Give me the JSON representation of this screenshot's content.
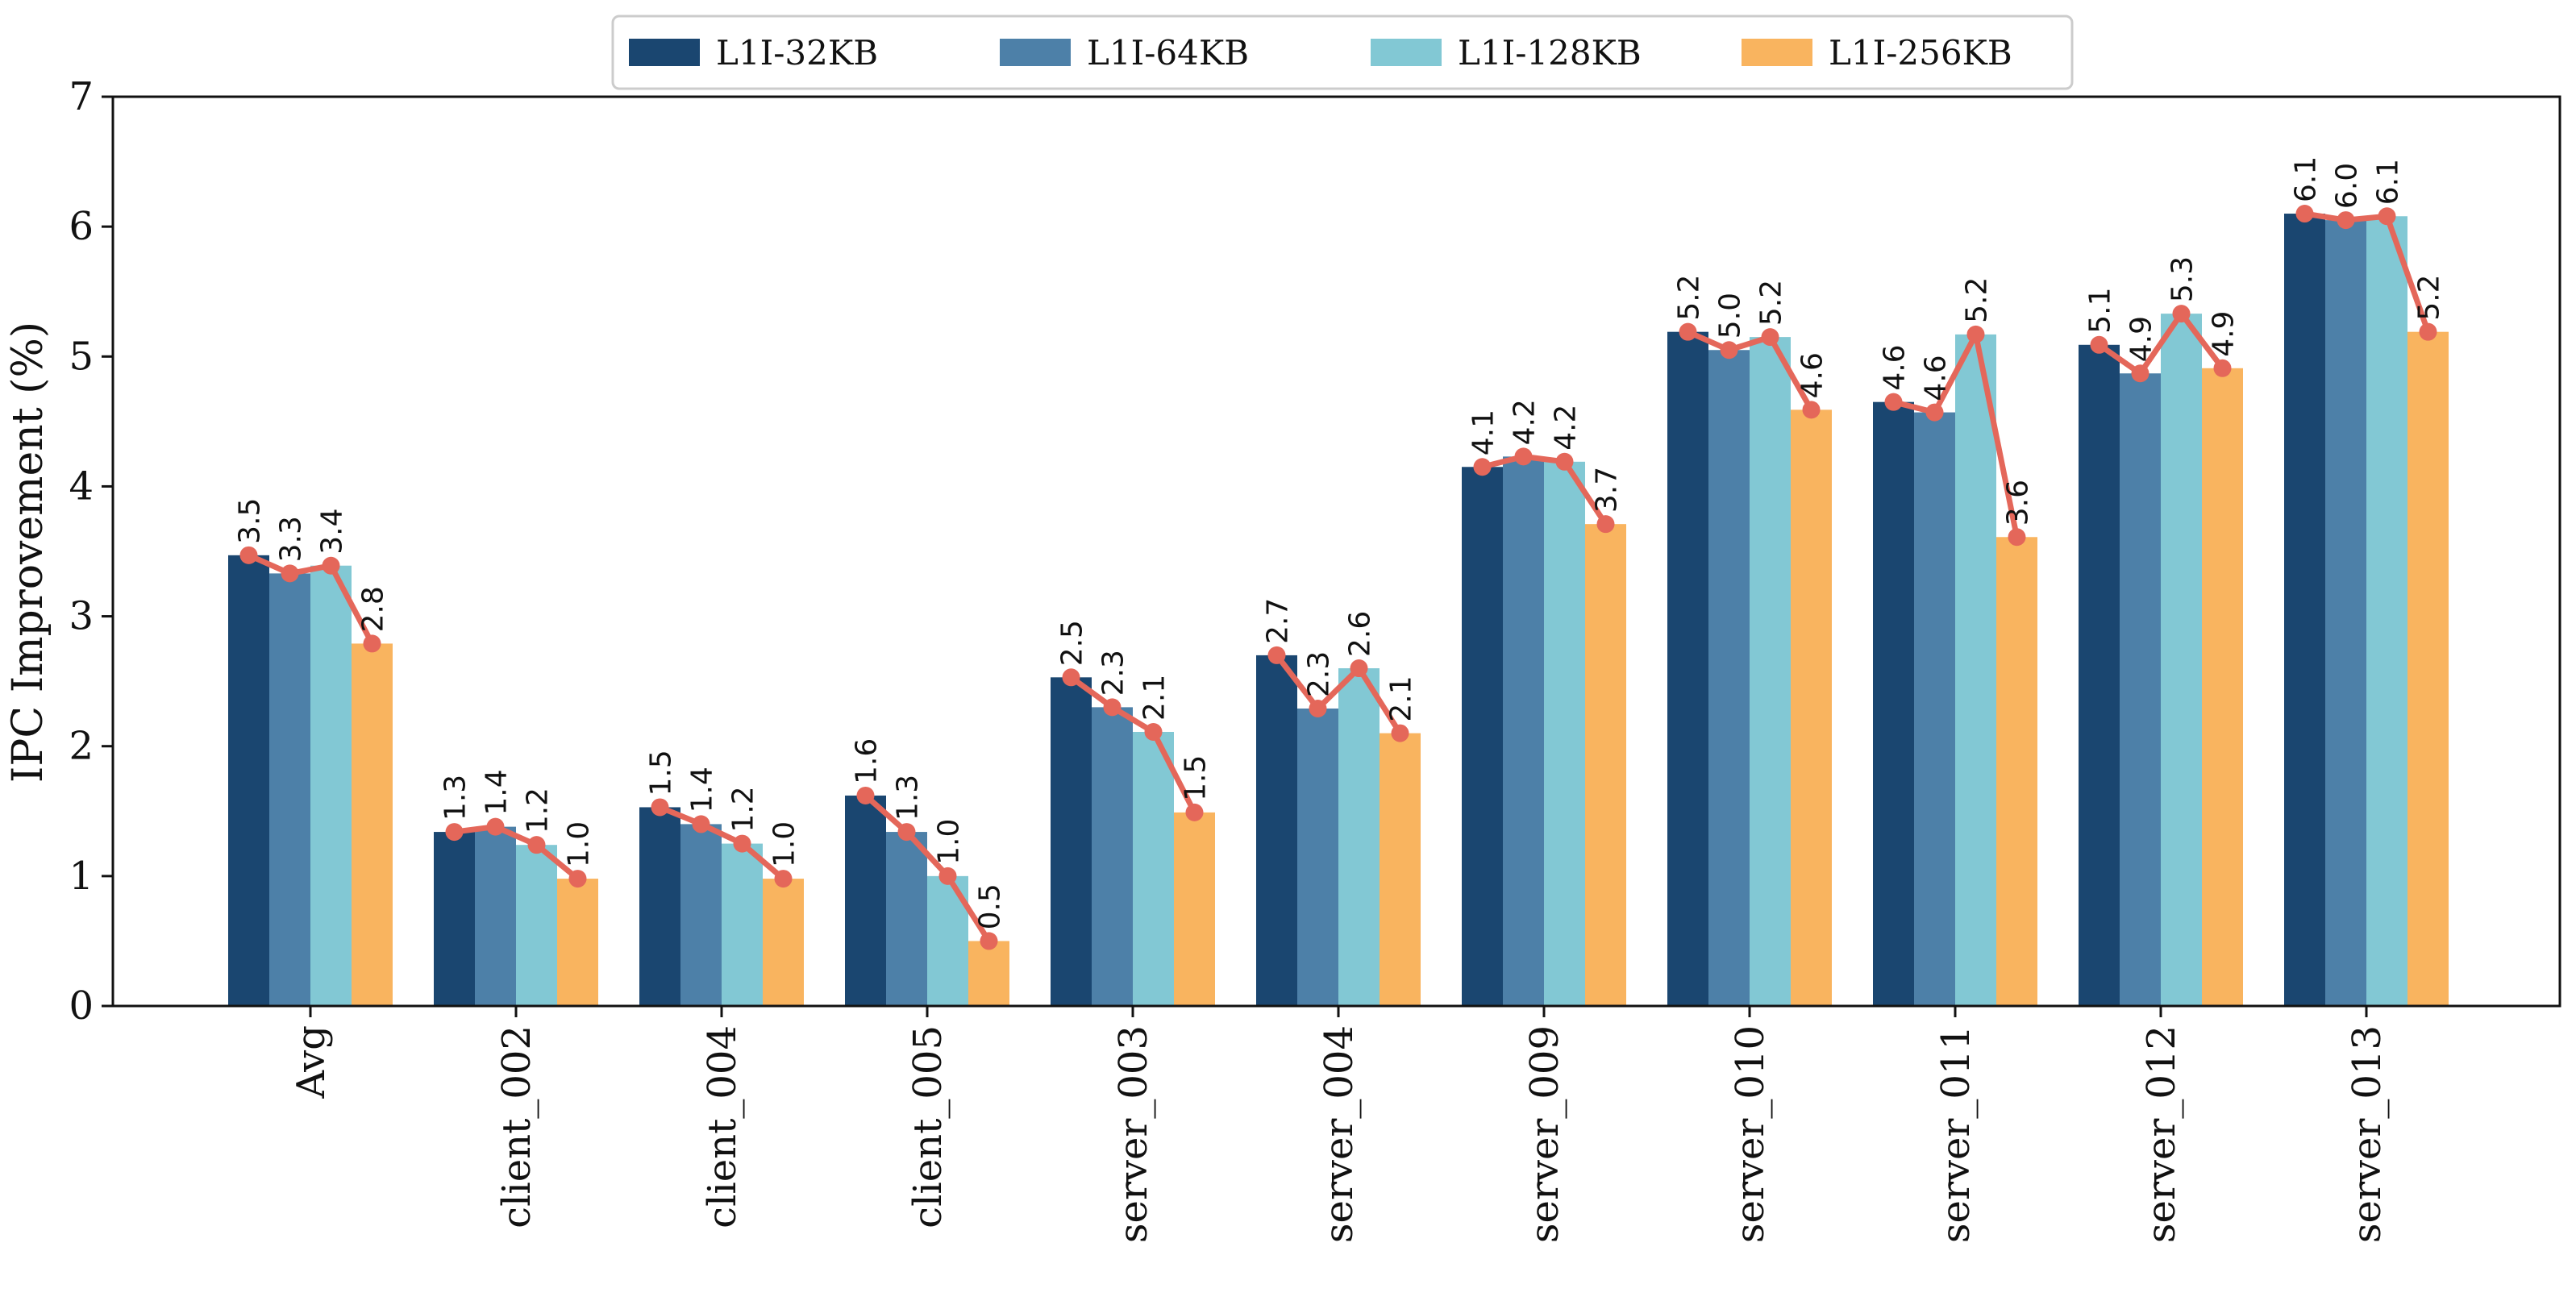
{
  "chart_data": {
    "type": "bar",
    "title": "",
    "xlabel": "",
    "ylabel": "IPC Improvement (%)",
    "ylim": [
      0,
      7
    ],
    "yticks": [
      0,
      1,
      2,
      3,
      4,
      5,
      6,
      7
    ],
    "grid": false,
    "legend_placement": "top-center",
    "categories": [
      "Avg",
      "client_002",
      "client_004",
      "client_005",
      "server_003",
      "server_004",
      "server_009",
      "server_010",
      "server_011",
      "server_012",
      "server_013"
    ],
    "series": [
      {
        "name": "L1I-32KB",
        "color": "#1a4670",
        "values": [
          3.47,
          1.34,
          1.53,
          1.62,
          2.53,
          2.7,
          4.15,
          5.19,
          4.65,
          5.09,
          6.1
        ]
      },
      {
        "name": "L1I-64KB",
        "color": "#4d80a8",
        "values": [
          3.33,
          1.38,
          1.4,
          1.34,
          2.3,
          2.29,
          4.23,
          5.05,
          4.57,
          4.87,
          6.05
        ]
      },
      {
        "name": "L1I-128KB",
        "color": "#82c8d4",
        "values": [
          3.39,
          1.24,
          1.25,
          1.0,
          2.11,
          2.6,
          4.19,
          5.15,
          5.17,
          5.33,
          6.08
        ]
      },
      {
        "name": "L1I-256KB",
        "color": "#f9b45f",
        "values": [
          2.79,
          0.98,
          0.98,
          0.5,
          1.49,
          2.1,
          3.71,
          4.59,
          3.61,
          4.91,
          5.19
        ]
      }
    ],
    "line_color": "#e4675a",
    "data_labels": [
      [
        "3.5",
        "3.3",
        "3.4",
        "2.8"
      ],
      [
        "1.3",
        "1.4",
        "1.2",
        "1.0"
      ],
      [
        "1.5",
        "1.4",
        "1.2",
        "1.0"
      ],
      [
        "1.6",
        "1.3",
        "1.0",
        "0.5"
      ],
      [
        "2.5",
        "2.3",
        "2.1",
        "1.5"
      ],
      [
        "2.7",
        "2.3",
        "2.6",
        "2.1"
      ],
      [
        "4.1",
        "4.2",
        "4.2",
        "3.7"
      ],
      [
        "5.2",
        "5.0",
        "5.2",
        "4.6"
      ],
      [
        "4.6",
        "4.6",
        "5.2",
        "3.6"
      ],
      [
        "5.1",
        "4.9",
        "5.3",
        "4.9"
      ],
      [
        "6.1",
        "6.0",
        "6.1",
        "5.2"
      ]
    ]
  }
}
